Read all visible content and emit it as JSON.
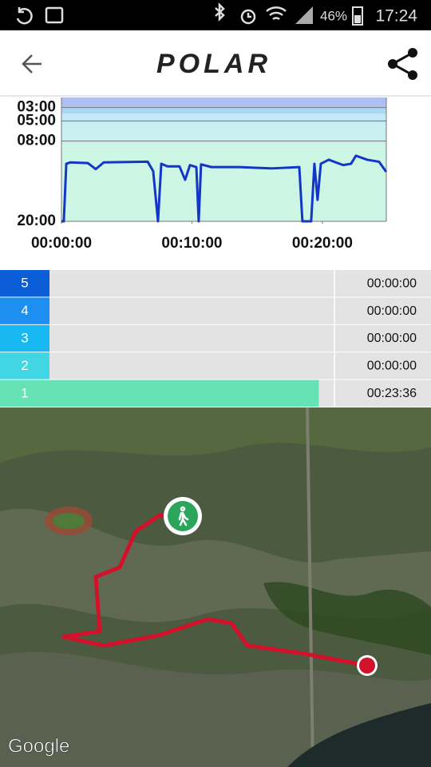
{
  "status_bar": {
    "battery": "46%",
    "time": "17:24"
  },
  "header": {
    "logo": "POLAR"
  },
  "chart_data": {
    "type": "line",
    "color": "#1336c8",
    "grid": true,
    "xlim": [
      0,
      24.9
    ],
    "ylim": [
      20,
      1.5
    ],
    "xticks": [
      {
        "value": 0,
        "label": "00:00:00"
      },
      {
        "value": 10,
        "label": "00:10:00"
      },
      {
        "value": 20,
        "label": "00:20:00"
      }
    ],
    "yticks": [
      {
        "value": 3,
        "label": "03:00"
      },
      {
        "value": 5,
        "label": "05:00"
      },
      {
        "value": 8,
        "label": "08:00"
      },
      {
        "value": 20,
        "label": "20:00"
      }
    ],
    "x": [
      0,
      0.18,
      0.37,
      0.67,
      2.02,
      2.63,
      3.24,
      6.61,
      7.03,
      7.4,
      7.65,
      8.13,
      9.05,
      9.48,
      9.85,
      10.34,
      10.52,
      10.7,
      11.5,
      13.64,
      14.86,
      16.09,
      18.23,
      18.47,
      19.14,
      19.39,
      19.63,
      19.88,
      20.49,
      21.59,
      22.2,
      22.57,
      23.43,
      24.34,
      24.89
    ],
    "values": [
      20,
      20,
      11.4,
      11.2,
      11.3,
      12.2,
      11.2,
      11.1,
      12.5,
      20,
      11.4,
      11.8,
      11.8,
      13.8,
      11.6,
      11.9,
      20,
      11.5,
      11.9,
      11.9,
      12.0,
      12.1,
      11.9,
      20,
      20,
      11.4,
      16.8,
      11.4,
      10.8,
      11.6,
      11.4,
      10.2,
      10.8,
      11.1,
      12.6
    ]
  },
  "zones": [
    {
      "zone": "5",
      "time": "00:00:00",
      "color": "#0b5ed8"
    },
    {
      "zone": "4",
      "time": "00:00:00",
      "color": "#1c8ff0"
    },
    {
      "zone": "3",
      "time": "00:00:00",
      "color": "#18b9f2"
    },
    {
      "zone": "2",
      "time": "00:00:00",
      "color": "#40d6e4"
    },
    {
      "zone": "1",
      "time": "00:23:36",
      "color": "#66e2b4"
    }
  ],
  "map": {
    "attribution": "Google"
  }
}
